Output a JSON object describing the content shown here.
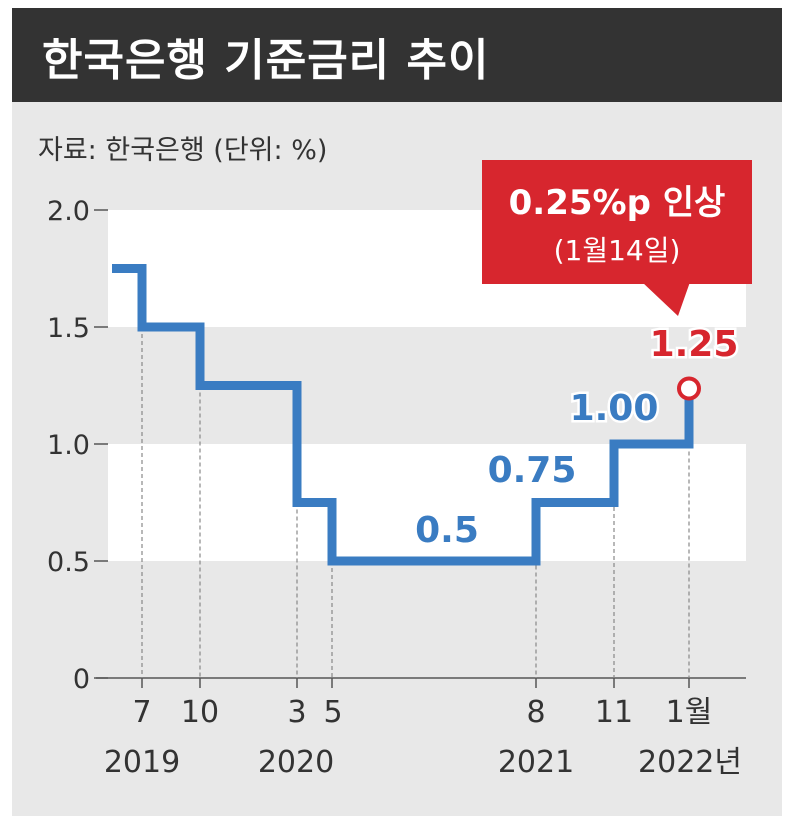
{
  "title": "한국은행 기준금리 추이",
  "source": "자료: 한국은행  (단위: %)",
  "callout": {
    "headline": "0.25%p 인상",
    "date": "(1월14일)"
  },
  "colors": {
    "header_bg": "#333333",
    "panel_bg": "#e8e8e8",
    "band": "#ffffff",
    "line": "#3a7cc2",
    "highlight": "#d7262e",
    "text": "#333333"
  },
  "chart_data": {
    "type": "line",
    "step": true,
    "title": "한국은행 기준금리 추이",
    "ylabel": "",
    "xlabel": "",
    "ylim": [
      0,
      2.0
    ],
    "yticks": [
      "0",
      "0.5",
      "1.0",
      "1.5",
      "2.0"
    ],
    "x_month_labels": [
      "7",
      "10",
      "3",
      "5",
      "8",
      "11",
      "1월"
    ],
    "x_year_labels": [
      "2019",
      "2020",
      "2021",
      "2022년"
    ],
    "series": [
      {
        "name": "",
        "points": [
          {
            "x": "2019-05",
            "y": 1.75
          },
          {
            "x": "2019-07",
            "y": 1.5
          },
          {
            "x": "2019-10",
            "y": 1.25
          },
          {
            "x": "2020-03",
            "y": 0.75
          },
          {
            "x": "2020-05",
            "y": 0.5
          },
          {
            "x": "2021-08",
            "y": 0.75
          },
          {
            "x": "2021-11",
            "y": 1.0
          },
          {
            "x": "2022-01",
            "y": 1.25
          }
        ]
      }
    ],
    "data_labels": [
      {
        "x": "2020-05",
        "label": "0.5"
      },
      {
        "x": "2021-08",
        "label": "0.75"
      },
      {
        "x": "2021-11",
        "label": "1.00"
      },
      {
        "x": "2022-01",
        "label": "1.25"
      }
    ],
    "grid": false,
    "alternating_bands": true
  }
}
